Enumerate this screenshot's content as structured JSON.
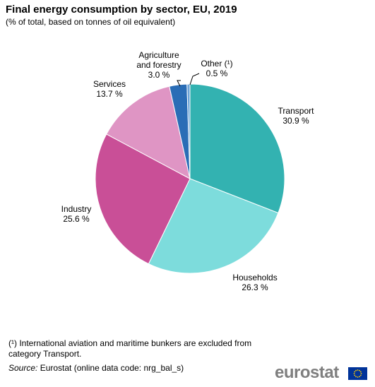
{
  "chart_data": {
    "type": "pie",
    "title": "Final energy consumption by sector, EU, 2019",
    "subtitle": "(% of total, based on tonnes of oil equivalent)",
    "unit": "%",
    "slices": [
      {
        "name": "Transport",
        "label_lines": [
          "Transport",
          "30.9 %"
        ],
        "value": 30.9,
        "color": "#33b2b1"
      },
      {
        "name": "Households",
        "label_lines": [
          "Households",
          "26.3 %"
        ],
        "value": 26.3,
        "color": "#7ddcdc"
      },
      {
        "name": "Industry",
        "label_lines": [
          "Industry",
          "25.6 %"
        ],
        "value": 25.6,
        "color": "#c94f97"
      },
      {
        "name": "Services",
        "label_lines": [
          "Services",
          "13.7 %"
        ],
        "value": 13.7,
        "color": "#df95c4"
      },
      {
        "name": "Agriculture and forestry",
        "label_lines": [
          "Agriculture",
          "and forestry",
          "3.0 %"
        ],
        "value": 3.0,
        "color": "#2a6db6"
      },
      {
        "name": "Other (¹)",
        "label_lines": [
          "Other (¹)",
          "0.5 %"
        ],
        "value": 0.5,
        "color": "#6fa4d8"
      }
    ]
  },
  "footnote": "(¹) International aviation and maritime bunkers are excluded from category Transport.",
  "source": {
    "prefix": "Source:",
    "text": " Eurostat (online data code: nrg_bal_s)"
  },
  "logo": {
    "text": "eurostat"
  }
}
